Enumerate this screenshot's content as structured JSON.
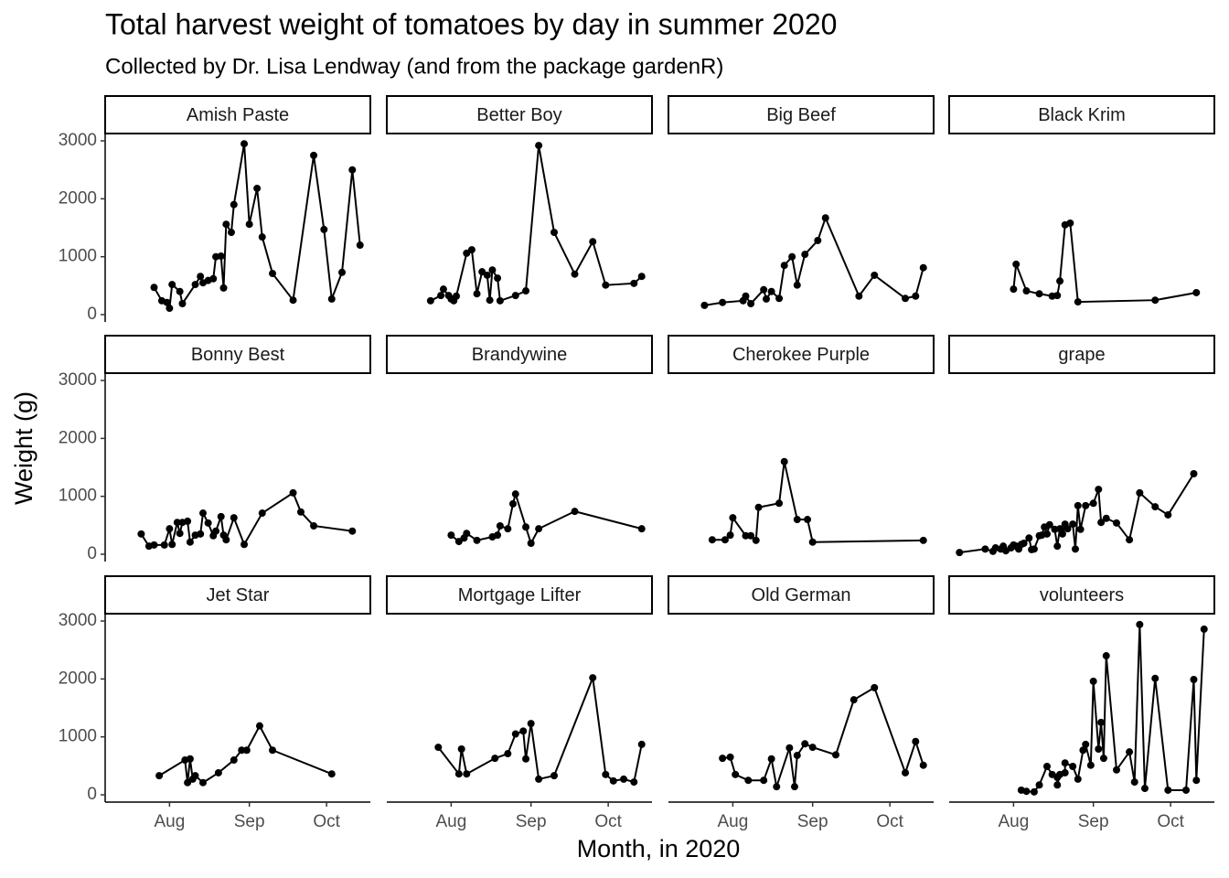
{
  "chart_data": {
    "type": "line",
    "title": "Total harvest weight of tomatoes by day in summer 2020",
    "subtitle": "Collected by Dr. Lisa Lendway (and from the package gardenR)",
    "xlabel": "Month, in 2020",
    "ylabel": "Weight (g)",
    "color": "#000000",
    "xlim": [
      189,
      292
    ],
    "ylim": [
      -126,
      3111
    ],
    "xticks": [
      {
        "value": 214,
        "label": "Aug"
      },
      {
        "value": 245,
        "label": "Sep"
      },
      {
        "value": 275,
        "label": "Oct"
      }
    ],
    "yticks": [
      0,
      1000,
      2000,
      3000
    ],
    "facets": [
      {
        "name": "Amish Paste",
        "x": [
          208,
          211,
          213,
          214,
          215,
          218,
          219,
          224,
          226,
          227,
          229,
          231,
          232,
          234,
          235,
          236,
          238,
          239,
          243,
          245,
          248,
          250,
          254,
          262,
          270,
          274,
          277,
          281,
          285,
          288
        ],
        "values": [
          470,
          240,
          210,
          110,
          520,
          400,
          190,
          520,
          660,
          550,
          590,
          620,
          1000,
          1010,
          460,
          1560,
          1420,
          1900,
          2950,
          1560,
          2180,
          1340,
          710,
          250,
          2750,
          1470,
          270,
          730,
          2500,
          1200
        ]
      },
      {
        "name": "Better Boy",
        "x": [
          206,
          210,
          211,
          213,
          214,
          215,
          216,
          220,
          222,
          224,
          226,
          228,
          229,
          230,
          232,
          233,
          239,
          243,
          248,
          254,
          262,
          269,
          274,
          285,
          288
        ],
        "values": [
          240,
          330,
          440,
          330,
          270,
          240,
          320,
          1060,
          1120,
          360,
          740,
          680,
          250,
          770,
          630,
          240,
          330,
          410,
          2920,
          1420,
          700,
          1260,
          510,
          540,
          660
        ]
      },
      {
        "name": "Big Beef",
        "x": [
          203,
          210,
          218,
          219,
          221,
          226,
          227,
          229,
          232,
          234,
          237,
          239,
          242,
          247,
          250,
          263,
          269,
          281,
          285,
          288
        ],
        "values": [
          160,
          210,
          240,
          320,
          190,
          430,
          270,
          400,
          280,
          850,
          1000,
          510,
          1040,
          1280,
          1670,
          320,
          680,
          280,
          320,
          810
        ]
      },
      {
        "name": "Black Krim",
        "x": [
          214,
          215,
          219,
          224,
          229,
          231,
          232,
          234,
          236,
          239,
          269,
          285
        ],
        "values": [
          440,
          870,
          410,
          360,
          320,
          330,
          580,
          1550,
          1580,
          220,
          250,
          380
        ]
      },
      {
        "name": "Bonny Best",
        "x": [
          203,
          206,
          208,
          212,
          214,
          215,
          217,
          218,
          219,
          221,
          222,
          224,
          226,
          227,
          229,
          231,
          232,
          234,
          235,
          236,
          239,
          243,
          250,
          262,
          265,
          270,
          285
        ],
        "values": [
          350,
          140,
          160,
          160,
          440,
          170,
          550,
          360,
          550,
          570,
          210,
          330,
          350,
          710,
          540,
          320,
          400,
          650,
          330,
          250,
          630,
          170,
          710,
          1060,
          730,
          490,
          400
        ]
      },
      {
        "name": "Brandywine",
        "x": [
          214,
          217,
          219,
          220,
          224,
          230,
          232,
          233,
          236,
          238,
          239,
          243,
          245,
          248,
          262,
          288
        ],
        "values": [
          330,
          220,
          280,
          360,
          240,
          300,
          330,
          490,
          440,
          870,
          1040,
          470,
          190,
          440,
          740,
          440
        ]
      },
      {
        "name": "Cherokee Purple",
        "x": [
          206,
          211,
          213,
          214,
          219,
          221,
          223,
          224,
          232,
          234,
          239,
          243,
          245,
          288
        ],
        "values": [
          250,
          250,
          330,
          630,
          320,
          320,
          240,
          810,
          880,
          1600,
          600,
          600,
          210,
          240
        ]
      },
      {
        "name": "grape",
        "x": [
          193,
          203,
          206,
          207,
          209,
          210,
          211,
          213,
          214,
          215,
          216,
          217,
          218,
          220,
          221,
          222,
          224,
          225,
          226,
          227,
          228,
          230,
          231,
          232,
          233,
          234,
          235,
          237,
          238,
          239,
          240,
          242,
          245,
          247,
          248,
          250,
          254,
          259,
          263,
          269,
          274,
          284
        ],
        "values": [
          30,
          90,
          50,
          110,
          90,
          140,
          60,
          110,
          160,
          140,
          90,
          170,
          190,
          280,
          80,
          90,
          320,
          330,
          470,
          350,
          510,
          430,
          140,
          440,
          350,
          520,
          440,
          520,
          90,
          840,
          430,
          840,
          880,
          1120,
          550,
          620,
          540,
          250,
          1060,
          820,
          680,
          1390
        ]
      },
      {
        "name": "Jet Star",
        "x": [
          210,
          220,
          221,
          222,
          223,
          224,
          227,
          233,
          239,
          242,
          244,
          249,
          254,
          277
        ],
        "values": [
          330,
          600,
          210,
          620,
          270,
          330,
          210,
          380,
          600,
          770,
          770,
          1190,
          770,
          360
        ]
      },
      {
        "name": "Mortgage Lifter",
        "x": [
          209,
          217,
          218,
          220,
          231,
          236,
          239,
          242,
          243,
          245,
          248,
          254,
          269,
          274,
          277,
          281,
          285,
          288
        ],
        "values": [
          820,
          360,
          790,
          360,
          630,
          710,
          1050,
          1100,
          620,
          1230,
          270,
          330,
          2020,
          350,
          240,
          270,
          220,
          870
        ]
      },
      {
        "name": "Old German",
        "x": [
          210,
          213,
          215,
          220,
          226,
          229,
          231,
          236,
          238,
          239,
          242,
          245,
          254,
          261,
          269,
          281,
          285,
          288
        ],
        "values": [
          630,
          650,
          350,
          250,
          250,
          620,
          140,
          810,
          140,
          680,
          880,
          820,
          690,
          1640,
          1850,
          380,
          920,
          510
        ]
      },
      {
        "name": "volunteers",
        "x": [
          217,
          219,
          222,
          224,
          227,
          229,
          231,
          231,
          232,
          234,
          234,
          237,
          239,
          241,
          242,
          244,
          245,
          247,
          248,
          249,
          250,
          254,
          259,
          261,
          263,
          265,
          269,
          274,
          281,
          284,
          285,
          288
        ],
        "values": [
          80,
          60,
          50,
          170,
          490,
          350,
          300,
          170,
          350,
          380,
          550,
          490,
          270,
          770,
          870,
          510,
          1960,
          790,
          1250,
          630,
          2400,
          430,
          740,
          220,
          2940,
          110,
          2010,
          80,
          80,
          1990,
          250,
          2860
        ]
      }
    ]
  }
}
